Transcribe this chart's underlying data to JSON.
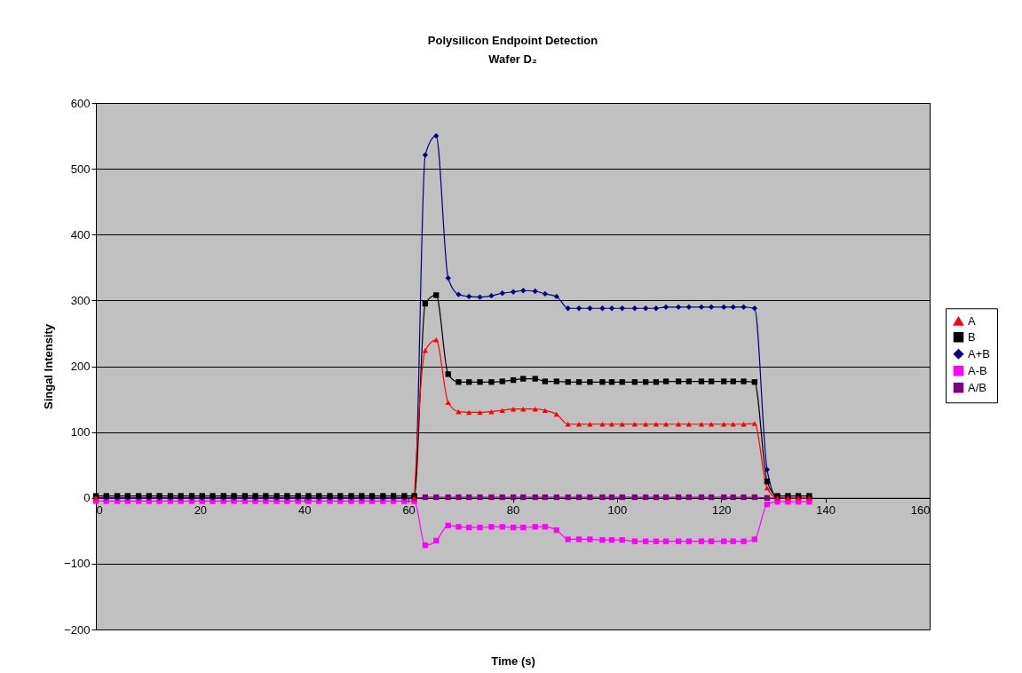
{
  "chart_data": {
    "type": "line",
    "title": "Polysilicon Endpoint Detection",
    "subtitle": "Wafer D₂",
    "xlabel": "Time (s)",
    "ylabel": "Singal Intensity",
    "x": [
      0,
      2,
      4.1,
      6.1,
      8.2,
      10.2,
      12.2,
      14.3,
      16.3,
      18.4,
      20.4,
      22.4,
      24.5,
      26.5,
      28.6,
      30.6,
      32.6,
      34.7,
      36.7,
      38.8,
      40.8,
      42.8,
      44.9,
      46.9,
      49.0,
      51.0,
      53.0,
      55.1,
      57.1,
      59.2,
      61.1,
      63.2,
      65.3,
      67.6,
      69.6,
      71.6,
      73.7,
      75.9,
      78.0,
      80.1,
      82.0,
      84.3,
      86.2,
      88.4,
      90.6,
      92.7,
      94.8,
      97.2,
      99.0,
      101.0,
      103.4,
      105.5,
      107.5,
      109.4,
      111.8,
      113.8,
      116.2,
      118.1,
      120.5,
      122.3,
      124.3,
      126.4,
      128.8,
      130.8,
      132.8,
      134.8,
      136.9
    ],
    "series": [
      {
        "name": "A",
        "color": "#ff0000",
        "marker": "triangle",
        "values": [
          0,
          null,
          null,
          null,
          null,
          null,
          null,
          null,
          null,
          null,
          null,
          null,
          null,
          null,
          null,
          null,
          null,
          null,
          null,
          null,
          null,
          null,
          null,
          null,
          null,
          null,
          null,
          null,
          null,
          null,
          0,
          224,
          240,
          145,
          131,
          130,
          130,
          131,
          133,
          135,
          135,
          135,
          133,
          127,
          112,
          112,
          112,
          112,
          112,
          112,
          112,
          112,
          112,
          112,
          112,
          112,
          112,
          112,
          112,
          112,
          112,
          113,
          15,
          0,
          0,
          0,
          0
        ]
      },
      {
        "name": "B",
        "color": "#000000",
        "marker": "square",
        "values": [
          3,
          3,
          3,
          3,
          3,
          3,
          3,
          3,
          3,
          3,
          3,
          3,
          3,
          3,
          3,
          3,
          3,
          3,
          3,
          3,
          3,
          3,
          3,
          3,
          3,
          3,
          3,
          3,
          3,
          3,
          3,
          295,
          308,
          188,
          176,
          176,
          176,
          176,
          177,
          179,
          181,
          181,
          177,
          177,
          176,
          176,
          176,
          176,
          176,
          176,
          176,
          176,
          176,
          177,
          177,
          177,
          177,
          177,
          177,
          177,
          177,
          176,
          25,
          3,
          3,
          3,
          3
        ]
      },
      {
        "name": "A+B",
        "color": "#000080",
        "marker": "diamond",
        "values": [
          0,
          0,
          0,
          0,
          0,
          0,
          0,
          0,
          0,
          0,
          0,
          0,
          0,
          0,
          0,
          0,
          0,
          0,
          0,
          0,
          0,
          0,
          0,
          0,
          0,
          0,
          0,
          0,
          0,
          0,
          0,
          521,
          550,
          334,
          309,
          306,
          305,
          307,
          311,
          313,
          315,
          314,
          310,
          306,
          288,
          288,
          288,
          288,
          288,
          288,
          288,
          288,
          288,
          290,
          290,
          290,
          290,
          290,
          290,
          290,
          290,
          288,
          43,
          0,
          0,
          null,
          null
        ]
      },
      {
        "name": "A-B",
        "color": "#ff00ff",
        "marker": "square",
        "values": [
          -5,
          -5,
          -5,
          -5,
          -5,
          -5,
          -5,
          -5,
          -5,
          -5,
          -5,
          -5,
          -5,
          -5,
          -5,
          -5,
          -5,
          -5,
          -5,
          -5,
          -5,
          -5,
          -5,
          -5,
          -5,
          -5,
          -5,
          -5,
          -5,
          -5,
          -5,
          -72,
          -65,
          -42,
          -44,
          -45,
          -45,
          -44,
          -44,
          -45,
          -45,
          -44,
          -44,
          -49,
          -63,
          -63,
          -63,
          -64,
          -64,
          -64,
          -66,
          -66,
          -66,
          -66,
          -66,
          -66,
          -66,
          -66,
          -66,
          -66,
          -66,
          -63,
          -10,
          -6,
          -6,
          -6,
          -6
        ]
      },
      {
        "name": "A/B",
        "color": "#800080",
        "marker": "square",
        "values": [
          -1,
          -1,
          -1,
          -1,
          -1,
          -1,
          -1,
          -1,
          -1,
          -1,
          -1,
          -1,
          -1,
          -1,
          -1,
          -1,
          -1,
          -1,
          -1,
          -1,
          -1,
          -1,
          -1,
          -1,
          -1,
          -1,
          -1,
          -1,
          -1,
          -1,
          -1,
          1,
          1,
          1,
          1,
          1,
          1,
          1,
          1,
          1,
          1,
          1,
          1,
          1,
          1,
          1,
          1,
          1,
          1,
          1,
          1,
          1,
          1,
          1,
          1,
          1,
          1,
          1,
          1,
          1,
          1,
          1,
          0,
          -1,
          -1,
          -1,
          -1
        ]
      }
    ],
    "xlim": [
      0,
      160
    ],
    "xticks": [
      0,
      20,
      40,
      60,
      80,
      100,
      120,
      140,
      160
    ],
    "ylim": [
      -200,
      600
    ],
    "yticks": [
      -200,
      -100,
      0,
      100,
      200,
      300,
      400,
      500,
      600
    ],
    "grid": "y",
    "legend": "right",
    "line_style": "solid"
  }
}
